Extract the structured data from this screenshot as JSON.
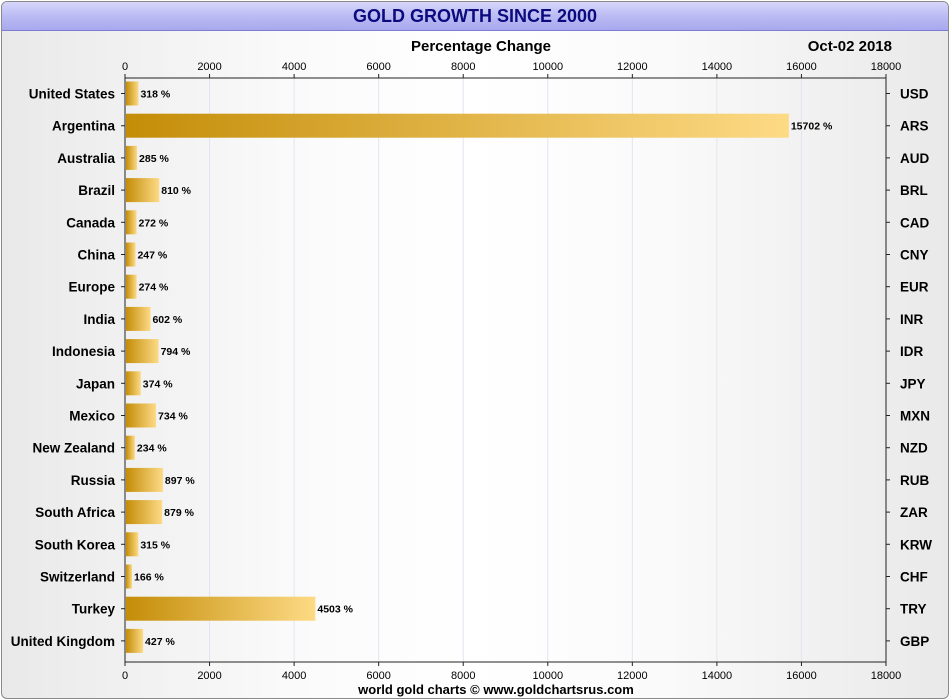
{
  "header": {
    "title": "GOLD GROWTH SINCE 2000",
    "subtitle": "Percentage Change",
    "date": "Oct-02  2018",
    "footer": "world gold charts © www.goldchartsrus.com"
  },
  "colors": {
    "title_bg": "#b9b9f3",
    "title_text": "#0b0b7d",
    "bar_dark": "#c48d08",
    "bar_light": "#fdda85",
    "grid": "#dfe6ef"
  },
  "chart_data": {
    "type": "bar",
    "orientation": "horizontal",
    "title": "GOLD GROWTH SINCE 2000",
    "xlabel": "Percentage Change",
    "xlim": [
      0,
      18000
    ],
    "xticks": [
      "0",
      "2000",
      "4000",
      "6000",
      "8000",
      "10000",
      "12000",
      "14000",
      "16000",
      "18000"
    ],
    "value_suffix": " %",
    "grid": true,
    "categories": [
      "United States",
      "Argentina",
      "Australia",
      "Brazil",
      "Canada",
      "China",
      "Europe",
      "India",
      "Indonesia",
      "Japan",
      "Mexico",
      "New Zealand",
      "Russia",
      "South Africa",
      "South Korea",
      "Switzerland",
      "Turkey",
      "United Kingdom"
    ],
    "currencies": [
      "USD",
      "ARS",
      "AUD",
      "BRL",
      "CAD",
      "CNY",
      "EUR",
      "INR",
      "IDR",
      "JPY",
      "MXN",
      "NZD",
      "RUB",
      "ZAR",
      "KRW",
      "CHF",
      "TRY",
      "GBP"
    ],
    "values": [
      318,
      15702,
      285,
      810,
      272,
      247,
      274,
      602,
      794,
      374,
      734,
      234,
      897,
      879,
      315,
      166,
      4503,
      427
    ]
  }
}
